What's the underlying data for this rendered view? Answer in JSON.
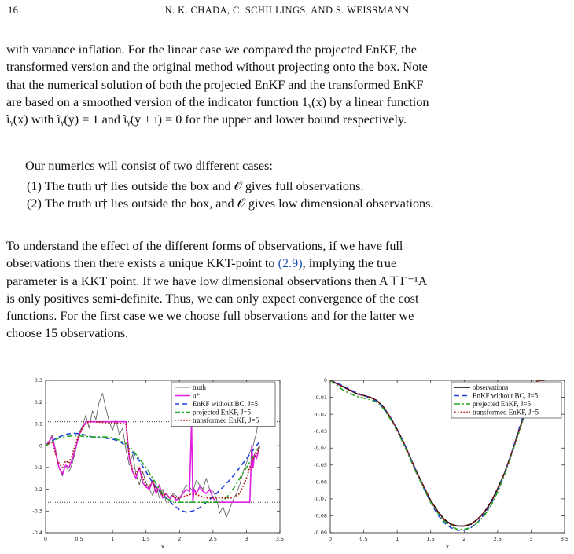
{
  "header": {
    "page_number": "16",
    "running_title": "N. K. CHADA, C. SCHILLINGS, AND S. WEISSMANN"
  },
  "paragraph1": {
    "lines": [
      "with variance inflation. For the linear case we compared the projected EnKF, the",
      "transformed version and the original method without projecting onto the box. Note",
      "that the numerical solution of both the projected EnKF and the transformed EnKF",
      "are based on a smoothed version of the indicator function 1ᵧ(x) by a linear function",
      "ĩᵧ(x) with ĩᵧ(y) = 1 and ĩᵧ(y ± ι) = 0 for the upper and lower bound respectively."
    ]
  },
  "paragraph2": {
    "text": "Our numerics will consist of two different cases:"
  },
  "cases": [
    "(1)  The truth u† lies outside the box and 𝒪 gives full observations.",
    "(2)  The truth u† lies outside the box, and 𝒪 gives low dimensional observations."
  ],
  "paragraph3": {
    "lines": [
      "To understand the effect of the different forms of observations, if we have full",
      "observations then there exists a unique KKT-point to ",
      "parameter is a KKT point. If we have low dimensional observations then A⊤Γ⁻¹A",
      "is only positives semi-definite. Thus, we can only expect convergence of the cost",
      "functions. For the first case we we choose full observations and for the latter we",
      "choose 15 observations."
    ],
    "ref": "(2.9)",
    "line2_tail": ", implying the true"
  },
  "colors": {
    "truth": "#555555",
    "udagger": "#e020e0",
    "enkf_no_bc": "#1f3fdf",
    "projected": "#22aa22",
    "transformed": "#b01818",
    "observations": "#000000",
    "link": "#2455b5"
  },
  "chart_data": [
    {
      "type": "line",
      "xlabel": "x",
      "xlim": [
        0,
        3.5
      ],
      "ylim": [
        -0.4,
        0.3
      ],
      "xticks": [
        "0",
        "0.5",
        "1",
        "1.5",
        "2",
        "2.5",
        "3",
        "3.5"
      ],
      "yticks": [
        "0.3",
        "0.2",
        "0.1",
        "0",
        "-0.1",
        "-0.2",
        "-0.3",
        "-0.4"
      ],
      "hlines": [
        0.11,
        -0.26
      ],
      "legend_position": "top-right",
      "series": [
        {
          "name": "truth",
          "style": "solid-thin",
          "x": [
            0,
            0.05,
            0.1,
            0.15,
            0.2,
            0.25,
            0.3,
            0.35,
            0.4,
            0.45,
            0.5,
            0.55,
            0.6,
            0.65,
            0.7,
            0.75,
            0.8,
            0.85,
            0.9,
            0.95,
            1.0,
            1.05,
            1.1,
            1.15,
            1.2,
            1.25,
            1.3,
            1.35,
            1.4,
            1.45,
            1.5,
            1.55,
            1.6,
            1.65,
            1.7,
            1.75,
            1.8,
            1.85,
            1.9,
            1.95,
            2.0,
            2.05,
            2.1,
            2.15,
            2.2,
            2.25,
            2.3,
            2.35,
            2.4,
            2.45,
            2.5,
            2.55,
            2.6,
            2.65,
            2.7,
            2.75,
            2.8,
            2.85,
            2.9,
            2.95,
            3.0,
            3.05,
            3.1,
            3.15,
            3.2
          ],
          "y": [
            0.0,
            0.02,
            0.05,
            -0.02,
            -0.1,
            -0.14,
            -0.09,
            -0.12,
            -0.08,
            -0.02,
            0.06,
            0.09,
            0.14,
            0.08,
            0.16,
            0.12,
            0.2,
            0.24,
            0.17,
            0.11,
            0.07,
            0.12,
            0.05,
            0.08,
            -0.02,
            -0.09,
            -0.04,
            -0.13,
            -0.18,
            -0.12,
            -0.17,
            -0.2,
            -0.23,
            -0.18,
            -0.24,
            -0.2,
            -0.26,
            -0.25,
            -0.22,
            -0.23,
            -0.25,
            -0.21,
            -0.18,
            -0.19,
            -0.21,
            -0.16,
            -0.18,
            -0.2,
            -0.15,
            -0.2,
            -0.21,
            -0.24,
            -0.31,
            -0.28,
            -0.33,
            -0.29,
            -0.25,
            -0.22,
            -0.18,
            -0.12,
            -0.08,
            -0.03,
            0.0,
            0.06,
            0.16
          ]
        },
        {
          "name": "u*",
          "style": "solid-thick",
          "x": [
            0,
            0.05,
            0.1,
            0.15,
            0.2,
            0.25,
            0.3,
            0.35,
            0.4,
            0.45,
            0.5,
            0.55,
            0.6,
            0.65,
            0.7,
            1.2,
            1.25,
            1.3,
            1.35,
            1.4,
            1.45,
            1.5,
            1.55,
            1.6,
            1.65,
            1.7,
            1.75,
            1.8,
            1.85,
            1.9,
            1.95,
            2.0,
            2.05,
            2.1,
            2.15,
            2.18,
            2.2,
            2.22,
            2.25,
            2.3,
            2.35,
            2.4,
            2.45,
            2.5,
            2.55,
            2.6,
            2.65,
            2.7,
            2.8,
            3.0,
            3.05,
            3.08,
            3.1,
            3.12,
            3.15,
            3.2
          ],
          "y": [
            0.0,
            0.02,
            0.04,
            -0.03,
            -0.1,
            -0.13,
            -0.09,
            -0.1,
            -0.06,
            -0.01,
            0.05,
            0.08,
            0.11,
            0.11,
            0.11,
            0.11,
            -0.06,
            -0.12,
            -0.15,
            -0.1,
            -0.17,
            -0.19,
            -0.2,
            -0.16,
            -0.22,
            -0.18,
            -0.24,
            -0.22,
            -0.24,
            -0.23,
            -0.25,
            -0.24,
            -0.22,
            -0.2,
            -0.21,
            0.11,
            -0.26,
            -0.2,
            -0.22,
            -0.19,
            -0.21,
            -0.22,
            -0.2,
            -0.24,
            -0.26,
            -0.26,
            -0.26,
            -0.26,
            -0.26,
            -0.26,
            -0.26,
            0.0,
            -0.1,
            -0.04,
            -0.06,
            0.0
          ]
        },
        {
          "name": "EnKF without BC, J=5",
          "style": "dashed",
          "x": [
            0,
            0.1,
            0.2,
            0.3,
            0.4,
            0.5,
            0.6,
            0.7,
            0.8,
            0.9,
            1.0,
            1.1,
            1.2,
            1.3,
            1.4,
            1.5,
            1.6,
            1.7,
            1.8,
            1.9,
            2.0,
            2.1,
            2.2,
            2.3,
            2.4,
            2.5,
            2.6,
            2.7,
            2.8,
            2.9,
            3.0,
            3.1,
            3.2
          ],
          "y": [
            0.0,
            0.022,
            0.04,
            0.052,
            0.057,
            0.055,
            0.048,
            0.04,
            0.036,
            0.034,
            0.03,
            0.02,
            0.0,
            -0.03,
            -0.07,
            -0.12,
            -0.17,
            -0.21,
            -0.24,
            -0.27,
            -0.295,
            -0.305,
            -0.3,
            -0.285,
            -0.26,
            -0.235,
            -0.205,
            -0.175,
            -0.14,
            -0.1,
            -0.06,
            -0.02,
            0.02
          ]
        },
        {
          "name": "projected EnKF, J=5",
          "style": "dashdot",
          "x": [
            0,
            0.1,
            0.2,
            0.3,
            0.4,
            0.5,
            0.6,
            0.7,
            0.8,
            0.9,
            1.0,
            1.1,
            1.2,
            1.3,
            1.4,
            1.5,
            1.6,
            1.7,
            1.8,
            1.9,
            2.0,
            2.1,
            2.2,
            2.3,
            2.4,
            2.5,
            2.6,
            2.7,
            2.8,
            2.9,
            3.0,
            3.1,
            3.2
          ],
          "y": [
            0.0,
            0.02,
            0.035,
            0.042,
            0.045,
            0.045,
            0.042,
            0.04,
            0.04,
            0.04,
            0.035,
            0.025,
            0.01,
            -0.02,
            -0.06,
            -0.1,
            -0.15,
            -0.2,
            -0.24,
            -0.26,
            -0.26,
            -0.26,
            -0.26,
            -0.26,
            -0.26,
            -0.26,
            -0.26,
            -0.24,
            -0.2,
            -0.15,
            -0.1,
            -0.05,
            0.0
          ]
        },
        {
          "name": "transformed EnKF, J=5",
          "style": "dotted",
          "x": [
            0,
            0.05,
            0.1,
            0.15,
            0.2,
            0.25,
            0.3,
            0.35,
            0.4,
            0.45,
            0.5,
            0.55,
            0.6,
            0.65,
            0.7,
            1.2,
            1.25,
            1.3,
            1.35,
            1.4,
            1.45,
            1.5,
            1.55,
            1.6,
            1.65,
            1.7,
            1.75,
            1.8,
            1.85,
            1.9,
            1.95,
            2.0,
            2.1,
            2.2,
            2.3,
            2.4,
            2.5,
            2.6,
            2.7,
            2.8,
            2.9,
            3.0,
            3.05,
            3.1,
            3.15,
            3.2
          ],
          "y": [
            0.0,
            0.01,
            0.02,
            -0.04,
            -0.08,
            -0.1,
            -0.07,
            -0.08,
            -0.04,
            0.01,
            0.05,
            0.08,
            0.1,
            0.11,
            0.11,
            0.1,
            -0.05,
            -0.11,
            -0.13,
            -0.1,
            -0.15,
            -0.18,
            -0.19,
            -0.16,
            -0.21,
            -0.2,
            -0.23,
            -0.22,
            -0.24,
            -0.23,
            -0.24,
            -0.24,
            -0.23,
            -0.22,
            -0.23,
            -0.24,
            -0.24,
            -0.24,
            -0.24,
            -0.24,
            -0.22,
            -0.15,
            -0.1,
            -0.06,
            -0.04,
            0.0
          ]
        }
      ]
    },
    {
      "type": "line",
      "xlabel": "x",
      "xlim": [
        0,
        3.5
      ],
      "ylim": [
        -0.09,
        0
      ],
      "xticks": [
        "0",
        "0.5",
        "1",
        "1.5",
        "2",
        "2.5",
        "3",
        "3.5"
      ],
      "yticks": [
        "0",
        "-0.01",
        "-0.02",
        "-0.03",
        "-0.04",
        "-0.05",
        "-0.06",
        "-0.07",
        "-0.08",
        "-0.09"
      ],
      "legend_position": "top-right",
      "series": [
        {
          "name": "observations",
          "style": "solid-thick",
          "x": [
            0,
            0.1,
            0.2,
            0.3,
            0.4,
            0.5,
            0.6,
            0.7,
            0.8,
            0.9,
            1.0,
            1.1,
            1.2,
            1.3,
            1.4,
            1.5,
            1.6,
            1.7,
            1.8,
            1.9,
            2.0,
            2.1,
            2.2,
            2.3,
            2.4,
            2.5,
            2.6,
            2.7,
            2.8,
            2.9,
            3.0,
            3.1,
            3.2
          ],
          "y": [
            0.0,
            -0.002,
            -0.004,
            -0.006,
            -0.008,
            -0.009,
            -0.01,
            -0.012,
            -0.016,
            -0.022,
            -0.029,
            -0.037,
            -0.046,
            -0.055,
            -0.063,
            -0.071,
            -0.077,
            -0.082,
            -0.085,
            -0.086,
            -0.086,
            -0.085,
            -0.082,
            -0.078,
            -0.072,
            -0.064,
            -0.055,
            -0.044,
            -0.032,
            -0.02,
            -0.008,
            0.0,
            0.0
          ]
        },
        {
          "name": "EnKF without BC, J=5",
          "style": "dashed",
          "x": [
            0,
            0.1,
            0.2,
            0.3,
            0.4,
            0.5,
            0.6,
            0.7,
            0.8,
            0.9,
            1.0,
            1.1,
            1.2,
            1.3,
            1.4,
            1.5,
            1.6,
            1.7,
            1.8,
            1.9,
            2.0,
            2.1,
            2.2,
            2.3,
            2.4,
            2.5,
            2.6,
            2.7,
            2.8,
            2.9,
            3.0,
            3.1
          ],
          "y": [
            0.0,
            -0.0015,
            -0.0035,
            -0.0055,
            -0.0075,
            -0.009,
            -0.0105,
            -0.0125,
            -0.0165,
            -0.022,
            -0.029,
            -0.037,
            -0.046,
            -0.055,
            -0.064,
            -0.072,
            -0.079,
            -0.084,
            -0.087,
            -0.0885,
            -0.0885,
            -0.087,
            -0.084,
            -0.079,
            -0.073,
            -0.065,
            -0.055,
            -0.044,
            -0.031,
            -0.019,
            -0.006,
            0.0
          ]
        },
        {
          "name": "projected EnKF, J=5",
          "style": "dashdot",
          "x": [
            0,
            0.1,
            0.2,
            0.3,
            0.4,
            0.5,
            0.6,
            0.7,
            0.8,
            0.9,
            1.0,
            1.1,
            1.2,
            1.3,
            1.4,
            1.5,
            1.6,
            1.7,
            1.8,
            1.9,
            2.0,
            2.1,
            2.2,
            2.3,
            2.4,
            2.5,
            2.6,
            2.7,
            2.8,
            2.9,
            3.0,
            3.1
          ],
          "y": [
            0.0,
            -0.003,
            -0.006,
            -0.008,
            -0.0095,
            -0.0105,
            -0.0115,
            -0.013,
            -0.017,
            -0.023,
            -0.03,
            -0.038,
            -0.047,
            -0.056,
            -0.064,
            -0.072,
            -0.078,
            -0.083,
            -0.086,
            -0.088,
            -0.088,
            -0.087,
            -0.084,
            -0.08,
            -0.074,
            -0.066,
            -0.056,
            -0.045,
            -0.033,
            -0.021,
            -0.009,
            0.0
          ]
        },
        {
          "name": "transformed EnKF, J=5",
          "style": "dotted",
          "x": [
            0,
            0.1,
            0.2,
            0.3,
            0.4,
            0.5,
            0.6,
            0.7,
            0.8,
            0.9,
            1.0,
            1.1,
            1.2,
            1.3,
            1.4,
            1.5,
            1.6,
            1.7,
            1.8,
            1.9,
            2.0,
            2.1,
            2.2,
            2.3,
            2.4,
            2.5,
            2.6,
            2.7,
            2.8,
            2.9,
            3.0,
            3.1,
            3.2
          ],
          "y": [
            0.0,
            -0.002,
            -0.004,
            -0.006,
            -0.008,
            -0.009,
            -0.01,
            -0.012,
            -0.016,
            -0.022,
            -0.029,
            -0.037,
            -0.046,
            -0.055,
            -0.063,
            -0.071,
            -0.077,
            -0.082,
            -0.085,
            -0.086,
            -0.086,
            -0.085,
            -0.082,
            -0.078,
            -0.072,
            -0.064,
            -0.055,
            -0.044,
            -0.032,
            -0.02,
            -0.008,
            0.0,
            0.0
          ]
        }
      ]
    }
  ]
}
